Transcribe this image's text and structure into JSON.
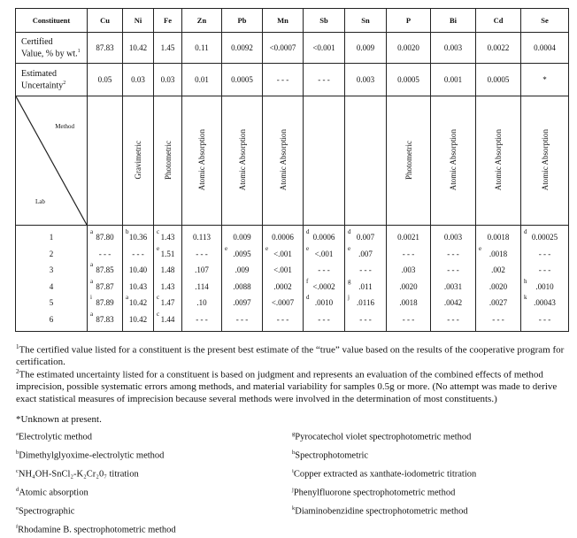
{
  "table": {
    "header_label": "Constituent",
    "columns": [
      "Cu",
      "Ni",
      "Fe",
      "Zn",
      "Pb",
      "Mn",
      "Sb",
      "Sn",
      "P",
      "Bi",
      "Cd",
      "Se"
    ],
    "certified_label": "Certified",
    "certified_label2": "Value, % by wt.",
    "certified_note": "1",
    "certified": [
      "87.83",
      "10.42",
      "1.45",
      "0.11",
      "0.0092",
      "<0.0007",
      "<0.001",
      "0.009",
      "0.0020",
      "0.003",
      "0.0022",
      "0.0004"
    ],
    "uncertainty_label": "Estimated",
    "uncertainty_label2": "Uncertainty",
    "uncertainty_note": "2",
    "uncertainty": [
      "0.05",
      "0.03",
      "0.03",
      "0.01",
      "0.0005",
      "- - -",
      "- - -",
      "0.003",
      "0.0005",
      "0.001",
      "0.0005",
      "*"
    ],
    "method_label": "Method",
    "lab_label": "Lab",
    "methods": [
      "",
      "Gravimetric",
      "Photometric",
      "Atomic Absorption",
      "Atomic Absorption",
      "Atomic Absorption",
      "",
      "",
      "Photometric",
      "Atomic Absorption",
      "Atomic Absorption",
      "Atomic Absorption"
    ],
    "labs": [
      {
        "lab": "1",
        "cells": [
          {
            "s": "a",
            "v": "87.80"
          },
          {
            "s": "b",
            "v": "10.36"
          },
          {
            "s": "c",
            "v": "1.43"
          },
          {
            "s": "",
            "v": "0.113"
          },
          {
            "s": "",
            "v": "0.009"
          },
          {
            "s": "",
            "v": "0.0006"
          },
          {
            "s": "d",
            "v": "0.0006"
          },
          {
            "s": "d",
            "v": "0.007"
          },
          {
            "s": "",
            "v": "0.0021"
          },
          {
            "s": "",
            "v": "0.003"
          },
          {
            "s": "",
            "v": "0.0018"
          },
          {
            "s": "d",
            "v": "0.00025"
          }
        ]
      },
      {
        "lab": "2",
        "cells": [
          {
            "s": "",
            "v": "- - -"
          },
          {
            "s": "",
            "v": "- - -"
          },
          {
            "s": "e",
            "v": "1.51"
          },
          {
            "s": "",
            "v": "- - -"
          },
          {
            "s": "e",
            "v": ".0095"
          },
          {
            "s": "e",
            "v": "<.001"
          },
          {
            "s": "e",
            "v": "<.001"
          },
          {
            "s": "e",
            "v": ".007"
          },
          {
            "s": "",
            "v": "- - -"
          },
          {
            "s": "",
            "v": "- - -"
          },
          {
            "s": "e",
            "v": ".0018"
          },
          {
            "s": "",
            "v": "- - -"
          }
        ]
      },
      {
        "lab": "3",
        "cells": [
          {
            "s": "a",
            "v": "87.85"
          },
          {
            "s": "",
            "v": "10.40"
          },
          {
            "s": "",
            "v": "1.48"
          },
          {
            "s": "",
            "v": ".107"
          },
          {
            "s": "",
            "v": ".009"
          },
          {
            "s": "",
            "v": "<.001"
          },
          {
            "s": "",
            "v": "- - -"
          },
          {
            "s": "",
            "v": "- - -"
          },
          {
            "s": "",
            "v": ".003"
          },
          {
            "s": "",
            "v": "- - -"
          },
          {
            "s": "",
            "v": ".002"
          },
          {
            "s": "",
            "v": "- - -"
          }
        ]
      },
      {
        "lab": "4",
        "cells": [
          {
            "s": "a",
            "v": "87.87"
          },
          {
            "s": "",
            "v": "10.43"
          },
          {
            "s": "",
            "v": "1.43"
          },
          {
            "s": "",
            "v": ".114"
          },
          {
            "s": "",
            "v": ".0088"
          },
          {
            "s": "",
            "v": ".0002"
          },
          {
            "s": "f",
            "v": "<.0002"
          },
          {
            "s": "g",
            "v": ".011"
          },
          {
            "s": "",
            "v": ".0020"
          },
          {
            "s": "",
            "v": ".0031"
          },
          {
            "s": "",
            "v": ".0020"
          },
          {
            "s": "h",
            "v": ".0010"
          }
        ]
      },
      {
        "lab": "5",
        "cells": [
          {
            "s": "i",
            "v": "87.89"
          },
          {
            "s": "a",
            "v": "10.42"
          },
          {
            "s": "c",
            "v": "1.47"
          },
          {
            "s": "",
            "v": ".10"
          },
          {
            "s": "",
            "v": ".0097"
          },
          {
            "s": "",
            "v": "<.0007"
          },
          {
            "s": "d",
            "v": ".0010"
          },
          {
            "s": "j",
            "v": ".0116"
          },
          {
            "s": "",
            "v": ".0018"
          },
          {
            "s": "",
            "v": ".0042"
          },
          {
            "s": "",
            "v": ".0027"
          },
          {
            "s": "k",
            "v": ".00043"
          }
        ]
      },
      {
        "lab": "6",
        "cells": [
          {
            "s": "a",
            "v": "87.83"
          },
          {
            "s": "",
            "v": "10.42"
          },
          {
            "s": "c",
            "v": "1.44"
          },
          {
            "s": "",
            "v": "- - -"
          },
          {
            "s": "",
            "v": "- - -"
          },
          {
            "s": "",
            "v": "- - -"
          },
          {
            "s": "",
            "v": "- - -"
          },
          {
            "s": "",
            "v": "- - -"
          },
          {
            "s": "",
            "v": "- - -"
          },
          {
            "s": "",
            "v": "- - -"
          },
          {
            "s": "",
            "v": "- - -"
          },
          {
            "s": "",
            "v": "- - -"
          }
        ]
      }
    ]
  },
  "footnotes": {
    "n1_mark": "1",
    "n1": "The certified value listed for a constituent is the present best estimate of the “true” value based on the results of the cooperative program for certification.",
    "n2_mark": "2",
    "n2": "The estimated uncertainty listed for a constituent is based on judgment and represents an evaluation of the combined effects of method imprecision, possible systematic errors among methods, and material variability for samples 0.5g or more. (No attempt was made to derive exact statistical measures of imprecision because several methods were involved in the determination of most constituents.)",
    "star": "*Unknown at present.",
    "left": [
      {
        "m": "a",
        "t": "Electrolytic method"
      },
      {
        "m": "b",
        "t": "Dimethylglyoxime-electrolytic method"
      },
      {
        "m": "c",
        "t": "NH₄OH-SnCl₂-K₂Cr₂0₇ titration"
      },
      {
        "m": "d",
        "t": "Atomic absorption"
      },
      {
        "m": "e",
        "t": "Spectrographic"
      },
      {
        "m": "f",
        "t": "Rhodamine B. spectrophotometric method"
      }
    ],
    "right": [
      {
        "m": "g",
        "t": "Pyrocatechol violet spectrophotometric method"
      },
      {
        "m": "h",
        "t": "Spectrophotometric"
      },
      {
        "m": "i",
        "t": "Copper extracted as xanthate-iodometric titration"
      },
      {
        "m": "j",
        "t": "Phenylfluorone spectrophotometric method"
      },
      {
        "m": "k",
        "t": "Diaminobenzidine spectrophotometric method"
      }
    ]
  }
}
